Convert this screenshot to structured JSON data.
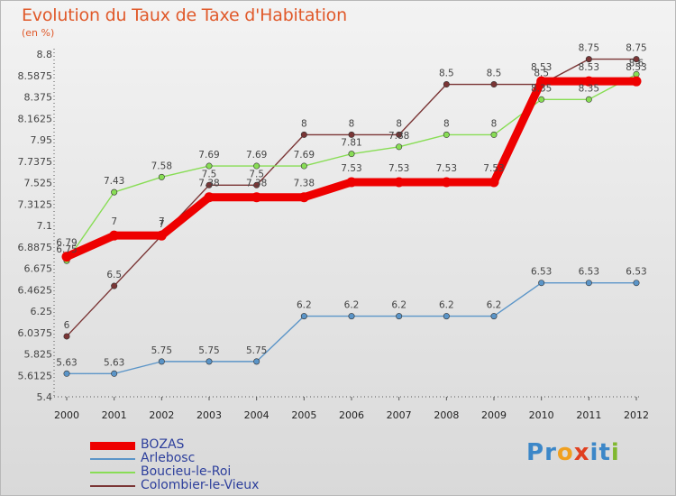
{
  "title": "Evolution du Taux de Taxe d'Habitation",
  "subtitle": "(en %)",
  "logo": {
    "text": "Proxiti",
    "letters": [
      "P",
      "r",
      "o",
      "x",
      "i",
      "t",
      "i"
    ],
    "colors": [
      "#3c87c8",
      "#3c87c8",
      "#f0a020",
      "#e04020",
      "#3c87c8",
      "#3c87c8",
      "#80b830"
    ]
  },
  "chart_data": {
    "type": "line",
    "x": [
      "2000",
      "2001",
      "2002",
      "2003",
      "2004",
      "2005",
      "2006",
      "2007",
      "2008",
      "2009",
      "2010",
      "2011",
      "2012"
    ],
    "ylim": [
      5.4,
      8.8
    ],
    "yticks": [
      "8.8",
      "8.5875",
      "8.375",
      "8.1625",
      "7.95",
      "7.7375",
      "7.525",
      "7.3125",
      "7.1",
      "6.8875",
      "6.675",
      "6.4625",
      "6.25",
      "6.0375",
      "5.825",
      "5.6125",
      "5.4"
    ],
    "grid": false,
    "legend_position": "bottom-left",
    "series": [
      {
        "name": "BOZAS",
        "color": "#ee0000",
        "values": [
          6.79,
          7,
          7,
          7.38,
          7.38,
          7.38,
          7.53,
          7.53,
          7.53,
          7.53,
          8.53,
          8.53,
          8.53
        ],
        "labels": [
          "6.79",
          "7",
          "7",
          "7.38",
          "7.38",
          "7.38",
          "7.53",
          "7.53",
          "7.53",
          "7.53",
          "8.53",
          "8.53",
          "8.53"
        ]
      },
      {
        "name": "Arlebosc",
        "color": "#5b95c8",
        "values": [
          5.63,
          5.63,
          5.75,
          5.75,
          5.75,
          6.2,
          6.2,
          6.2,
          6.2,
          6.2,
          6.53,
          6.53,
          6.53
        ],
        "labels": [
          "5.63",
          "5.63",
          "5.75",
          "5.75",
          "5.75",
          "6.2",
          "6.2",
          "6.2",
          "6.2",
          "6.2",
          "6.53",
          "6.53",
          "6.53"
        ]
      },
      {
        "name": "Boucieu-le-Roi",
        "color": "#88dd55",
        "values": [
          6.75,
          7.43,
          7.58,
          7.69,
          7.69,
          7.69,
          7.81,
          7.88,
          8,
          8,
          8.35,
          8.35,
          8.6
        ],
        "labels": [
          "6.75",
          "7.43",
          "7.58",
          "7.69",
          "7.69",
          "7.69",
          "7.81",
          "7.88",
          "8",
          "8",
          "8.35",
          "8.35",
          "8.6"
        ]
      },
      {
        "name": "Colombier-le-Vieux",
        "color": "#7a3535",
        "values": [
          6,
          6.5,
          7,
          7.5,
          7.5,
          8,
          8,
          8,
          8.5,
          8.5,
          8.5,
          8.75,
          8.75
        ],
        "labels": [
          "6",
          "6.5",
          "7",
          "7.5",
          "7.5",
          "8",
          "8",
          "8",
          "8.5",
          "8.5",
          "8.5",
          "8.75",
          "8.75"
        ]
      }
    ]
  }
}
